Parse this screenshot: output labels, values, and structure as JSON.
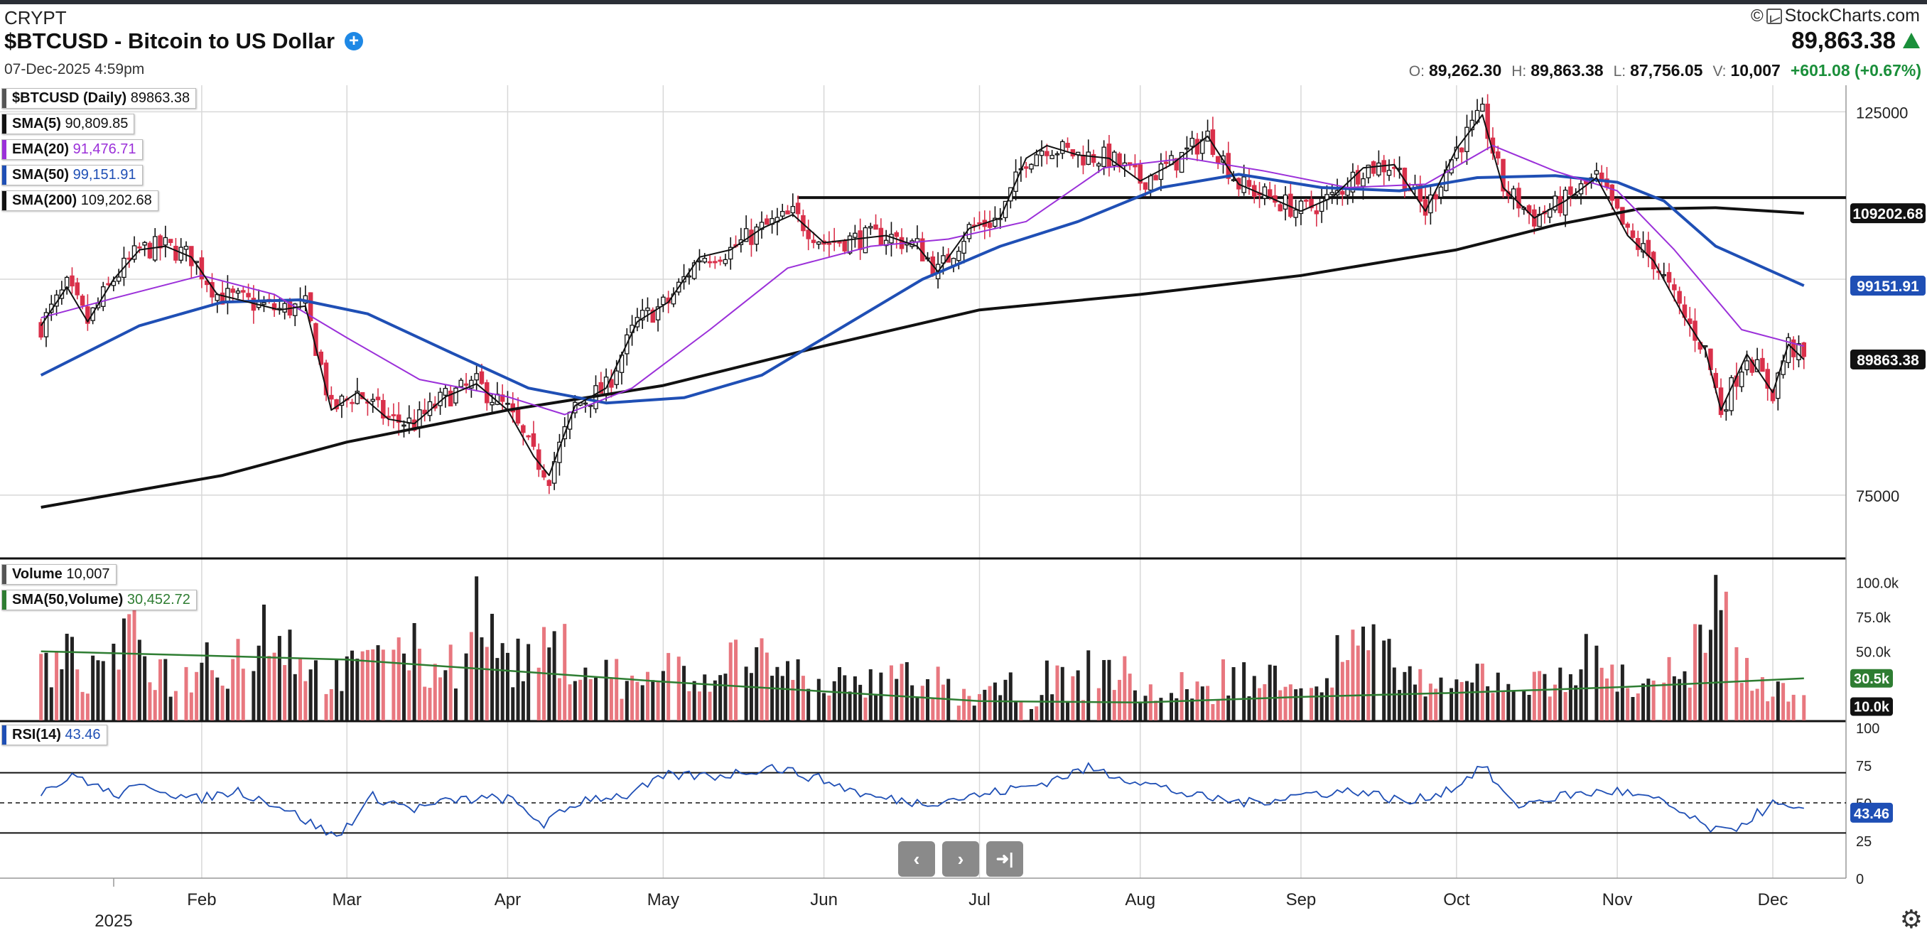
{
  "header": {
    "exchange": "CRYPT",
    "title": "$BTCUSD - Bitcoin to US Dollar",
    "datetime": "07-Dec-2025 4:59pm",
    "brand": "StockCharts.com",
    "copyright": "©",
    "last_price": "89,863.38",
    "open_label": "O:",
    "open": "89,262.30",
    "high_label": "H:",
    "high": "89,863.38",
    "low_label": "L:",
    "low": "87,756.05",
    "vol_label": "V:",
    "vol": "10,007",
    "change": "+601.08 (+0.67%)"
  },
  "legend": {
    "price": {
      "key": "$BTCUSD (Daily)",
      "value": "89863.38",
      "color": "#111111"
    },
    "sma5": {
      "key": "SMA(5)",
      "value": "90,809.85",
      "color": "#111111"
    },
    "ema20": {
      "key": "EMA(20)",
      "value": "91,476.71",
      "color": "#9b30d9"
    },
    "sma50": {
      "key": "SMA(50)",
      "value": "99,151.91",
      "color": "#1f4fb5"
    },
    "sma200": {
      "key": "SMA(200)",
      "value": "109,202.68",
      "color": "#111111"
    },
    "volume": {
      "key": "Volume",
      "value": "10,007",
      "color": "#555555"
    },
    "volsma": {
      "key": "SMA(50,Volume)",
      "value": "30,452.72",
      "color": "#2e7d32"
    },
    "rsi": {
      "key": "RSI(14)",
      "value": "43.46",
      "color": "#1f4fb5"
    }
  },
  "colors": {
    "up": "#111111",
    "down": "#d9304a",
    "vol_up": "#222222",
    "vol_down": "#e8777f",
    "sma200": "#111111",
    "sma50": "#1f4fb5",
    "ema20": "#9b30d9",
    "sma5": "#111111",
    "volsma": "#2e7d32",
    "rsi": "#1f4fb5",
    "grid": "#d8d8d8"
  },
  "chart_data": {
    "type": "line",
    "price_axis": {
      "labels": [
        "125000",
        "75000"
      ],
      "values": [
        125000,
        75000
      ],
      "scale": "log"
    },
    "volume_axis": {
      "labels": [
        "100.0k",
        "75.0k",
        "50.0k"
      ],
      "values": [
        100000,
        75000,
        50000
      ]
    },
    "rsi_axis": {
      "labels": [
        "100",
        "75",
        "50",
        "25",
        "0"
      ],
      "values": [
        100,
        75,
        50,
        25,
        0
      ]
    },
    "months": [
      "Feb",
      "Mar",
      "Apr",
      "May",
      "Jun",
      "Jul",
      "Aug",
      "Sep",
      "Oct",
      "Nov",
      "Dec"
    ],
    "year_label": "2025",
    "price_tags": [
      {
        "label": "109202.68",
        "value": 109202.68,
        "color": "#111111"
      },
      {
        "label": "99151.91",
        "value": 99151.91,
        "color": "#1f4fb5"
      },
      {
        "label": "89863.38",
        "value": 89863.38,
        "color": "#111111"
      }
    ],
    "volume_tags": [
      {
        "label": "30.5k",
        "value": 30452,
        "color": "#2e7d32"
      },
      {
        "label": "10.0k",
        "value": 10007,
        "color": "#111111"
      }
    ],
    "rsi_tag": {
      "label": "43.46",
      "value": 43.46
    },
    "horizontal_line": 111500,
    "close_series": {
      "x": [
        "2025-01-01",
        "2025-01-06",
        "2025-01-10",
        "2025-01-15",
        "2025-01-20",
        "2025-01-25",
        "2025-01-30",
        "2025-02-04",
        "2025-02-10",
        "2025-02-16",
        "2025-02-21",
        "2025-02-26",
        "2025-03-03",
        "2025-03-09",
        "2025-03-14",
        "2025-03-20",
        "2025-03-26",
        "2025-04-01",
        "2025-04-06",
        "2025-04-09",
        "2025-04-14",
        "2025-04-20",
        "2025-04-26",
        "2025-05-02",
        "2025-05-08",
        "2025-05-14",
        "2025-05-20",
        "2025-05-26",
        "2025-06-01",
        "2025-06-07",
        "2025-06-13",
        "2025-06-19",
        "2025-06-23",
        "2025-06-29",
        "2025-07-05",
        "2025-07-10",
        "2025-07-14",
        "2025-07-20",
        "2025-07-26",
        "2025-08-01",
        "2025-08-07",
        "2025-08-14",
        "2025-08-20",
        "2025-08-26",
        "2025-09-01",
        "2025-09-07",
        "2025-09-13",
        "2025-09-19",
        "2025-09-25",
        "2025-10-01",
        "2025-10-06",
        "2025-10-10",
        "2025-10-16",
        "2025-10-22",
        "2025-10-28",
        "2025-11-03",
        "2025-11-08",
        "2025-11-14",
        "2025-11-18",
        "2025-11-21",
        "2025-11-26",
        "2025-12-01",
        "2025-12-04",
        "2025-12-07"
      ],
      "y": [
        94000,
        99000,
        94500,
        100000,
        104000,
        104500,
        103000,
        98000,
        97000,
        96000,
        96500,
        84000,
        86000,
        83000,
        82500,
        85500,
        87000,
        84000,
        79000,
        77000,
        84500,
        86500,
        94500,
        97000,
        103000,
        104000,
        107000,
        109000,
        105000,
        105500,
        106000,
        104500,
        101000,
        107000,
        108500,
        117500,
        119500,
        118000,
        117500,
        114000,
        116500,
        121000,
        113500,
        111500,
        109500,
        111500,
        116000,
        116500,
        109500,
        119000,
        124500,
        113000,
        108500,
        111000,
        114500,
        106000,
        102500,
        95000,
        91000,
        84000,
        90500,
        86000,
        91700,
        89863
      ]
    },
    "sma50_series": {
      "x": [
        "2025-01-01",
        "2025-01-20",
        "2025-02-05",
        "2025-02-20",
        "2025-03-05",
        "2025-03-20",
        "2025-04-05",
        "2025-04-20",
        "2025-05-05",
        "2025-05-20",
        "2025-06-05",
        "2025-06-20",
        "2025-07-05",
        "2025-07-20",
        "2025-08-05",
        "2025-08-20",
        "2025-09-05",
        "2025-09-20",
        "2025-10-05",
        "2025-10-20",
        "2025-11-01",
        "2025-11-10",
        "2025-11-20",
        "2025-12-07"
      ],
      "y": [
        88000,
        94000,
        97000,
        97300,
        95500,
        91000,
        86500,
        84800,
        85400,
        88000,
        94000,
        100000,
        104500,
        108000,
        113000,
        115000,
        113000,
        112500,
        114500,
        114800,
        113800,
        111000,
        104500,
        99150
      ]
    },
    "sma200_series": {
      "x": [
        "2025-01-01",
        "2025-02-05",
        "2025-03-01",
        "2025-04-01",
        "2025-05-01",
        "2025-06-01",
        "2025-07-01",
        "2025-08-01",
        "2025-09-01",
        "2025-10-01",
        "2025-10-20",
        "2025-11-05",
        "2025-11-20",
        "2025-12-07"
      ],
      "y": [
        73800,
        77000,
        80500,
        84000,
        86800,
        91500,
        96000,
        98000,
        100500,
        104000,
        107500,
        109800,
        110000,
        109202
      ]
    },
    "ema20_series": {
      "x": [
        "2025-01-01",
        "2025-01-15",
        "2025-02-01",
        "2025-02-15",
        "2025-03-01",
        "2025-03-15",
        "2025-04-01",
        "2025-04-12",
        "2025-04-25",
        "2025-05-10",
        "2025-05-25",
        "2025-06-10",
        "2025-06-25",
        "2025-07-10",
        "2025-07-25",
        "2025-08-10",
        "2025-08-25",
        "2025-09-10",
        "2025-09-25",
        "2025-10-08",
        "2025-10-20",
        "2025-11-01",
        "2025-11-12",
        "2025-11-25",
        "2025-12-07"
      ],
      "y": [
        95000,
        97500,
        100500,
        98000,
        92500,
        87500,
        85500,
        83500,
        86500,
        93500,
        101500,
        104500,
        105500,
        108000,
        116000,
        117500,
        115500,
        113000,
        113500,
        119500,
        115500,
        112500,
        104000,
        93500,
        91476
      ]
    },
    "volume_values": [
      45,
      52,
      38,
      60,
      70,
      44,
      35,
      55,
      48,
      62,
      80,
      65,
      40,
      38,
      45,
      75,
      58,
      42,
      50,
      95,
      66,
      48,
      55,
      58,
      44,
      40,
      30,
      38,
      42,
      28,
      35,
      60,
      55,
      38,
      40,
      35,
      28,
      30,
      36,
      25,
      32,
      20,
      22,
      28,
      18,
      35,
      30,
      45,
      38,
      25,
      20,
      30,
      22,
      40,
      28,
      48,
      35,
      30,
      55,
      62,
      48,
      38,
      25,
      28,
      40,
      35,
      32,
      30,
      45,
      52,
      38,
      28,
      40,
      35,
      60,
      85,
      40,
      30,
      22
    ],
    "volume_sma_series": {
      "x": [
        "2025-01-01",
        "2025-02-01",
        "2025-03-01",
        "2025-04-01",
        "2025-05-01",
        "2025-06-01",
        "2025-07-01",
        "2025-08-01",
        "2025-09-01",
        "2025-10-01",
        "2025-11-01",
        "2025-12-07"
      ],
      "y": [
        50000,
        47000,
        44000,
        36000,
        28000,
        21000,
        14000,
        13000,
        17000,
        20000,
        24000,
        30452
      ]
    },
    "rsi_series": {
      "x": [
        "2025-01-01",
        "2025-01-08",
        "2025-01-15",
        "2025-01-22",
        "2025-01-30",
        "2025-02-08",
        "2025-02-16",
        "2025-02-27",
        "2025-03-06",
        "2025-03-14",
        "2025-03-22",
        "2025-04-01",
        "2025-04-08",
        "2025-04-16",
        "2025-04-24",
        "2025-05-02",
        "2025-05-12",
        "2025-05-22",
        "2025-06-01",
        "2025-06-10",
        "2025-06-20",
        "2025-07-01",
        "2025-07-12",
        "2025-07-22",
        "2025-08-01",
        "2025-08-12",
        "2025-08-22",
        "2025-09-02",
        "2025-09-12",
        "2025-09-22",
        "2025-10-01",
        "2025-10-06",
        "2025-10-12",
        "2025-10-22",
        "2025-11-01",
        "2025-11-10",
        "2025-11-18",
        "2025-11-22",
        "2025-12-01",
        "2025-12-07"
      ],
      "y": [
        58,
        68,
        55,
        62,
        52,
        58,
        48,
        27,
        54,
        46,
        52,
        53,
        36,
        53,
        55,
        68,
        68,
        74,
        65,
        54,
        50,
        55,
        62,
        73,
        64,
        54,
        50,
        56,
        58,
        50,
        61,
        75,
        48,
        55,
        58,
        50,
        34,
        30,
        49,
        43.46
      ]
    }
  }
}
